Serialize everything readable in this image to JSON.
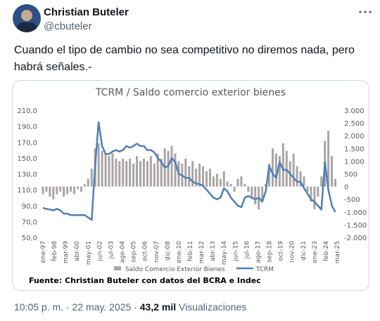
{
  "header": {
    "name": "Christian Buteler",
    "handle": "@cbuteler"
  },
  "tweet": {
    "lines": [
      "Cuando el tipo de cambio no sea competitivo no diremos nada, pero",
      "habrá señales.-"
    ]
  },
  "footer": {
    "time": "10:05 p. m.",
    "date": "22 may. 2025",
    "views": "43,2 mil",
    "views_label": "Visualizaciones"
  },
  "chart_data": {
    "type": "combo",
    "title": "TCRM / Saldo comercio exterior bienes",
    "source": "Fuente: Christian Buteler con datos del BCRA e Indec",
    "xlim": [
      0,
      338
    ],
    "xticks": [
      {
        "value": 0,
        "label": "ene-97"
      },
      {
        "value": 13,
        "label": "feb-98"
      },
      {
        "value": 26,
        "label": "mar-99"
      },
      {
        "value": 39,
        "label": "abr-00"
      },
      {
        "value": 52,
        "label": "may-01"
      },
      {
        "value": 65,
        "label": "jun-02"
      },
      {
        "value": 78,
        "label": "jul-03"
      },
      {
        "value": 91,
        "label": "ago-04"
      },
      {
        "value": 104,
        "label": "sep-05"
      },
      {
        "value": 117,
        "label": "oct-06"
      },
      {
        "value": 130,
        "label": "nov-07"
      },
      {
        "value": 143,
        "label": "dic-08"
      },
      {
        "value": 156,
        "label": "ene-10"
      },
      {
        "value": 169,
        "label": "feb-11"
      },
      {
        "value": 182,
        "label": "mar-12"
      },
      {
        "value": 195,
        "label": "abr-13"
      },
      {
        "value": 208,
        "label": "may-14"
      },
      {
        "value": 221,
        "label": "jun-15"
      },
      {
        "value": 234,
        "label": "jul-16"
      },
      {
        "value": 247,
        "label": "ago-17"
      },
      {
        "value": 260,
        "label": "sep-18"
      },
      {
        "value": 273,
        "label": "oct-19"
      },
      {
        "value": 286,
        "label": "nov-20"
      },
      {
        "value": 299,
        "label": "dic-21"
      },
      {
        "value": 312,
        "label": "ene-23"
      },
      {
        "value": 325,
        "label": "feb-24"
      },
      {
        "value": 338,
        "label": "mar-25"
      }
    ],
    "ylim": [
      50,
      210
    ],
    "yticks": [
      {
        "value": 50,
        "label": "50,0"
      },
      {
        "value": 70,
        "label": "70,0"
      },
      {
        "value": 90,
        "label": "90,0"
      },
      {
        "value": 110,
        "label": "110,0"
      },
      {
        "value": 130,
        "label": "130,0"
      },
      {
        "value": 150,
        "label": "150,0"
      },
      {
        "value": 170,
        "label": "170,0"
      },
      {
        "value": 190,
        "label": "190,0"
      },
      {
        "value": 210,
        "label": "210,0"
      }
    ],
    "y2lim": [
      -2000,
      3000
    ],
    "y2ticks": [
      {
        "value": -2000,
        "label": "-2.000"
      },
      {
        "value": -1500,
        "label": "-1.500"
      },
      {
        "value": -1000,
        "label": "-1.000"
      },
      -500,
      0,
      500,
      {
        "value": 1000,
        "label": "1.000"
      },
      {
        "value": 1500,
        "label": "1.500"
      },
      {
        "value": 2000,
        "label": "2.000"
      },
      {
        "value": 2500,
        "label": "2.500"
      },
      {
        "value": 3000,
        "label": "3.000"
      }
    ],
    "x": [
      0,
      4,
      8,
      12,
      16,
      20,
      24,
      28,
      32,
      36,
      40,
      44,
      48,
      52,
      56,
      60,
      64,
      68,
      72,
      76,
      80,
      84,
      88,
      92,
      96,
      100,
      104,
      108,
      112,
      116,
      120,
      124,
      128,
      132,
      136,
      140,
      144,
      148,
      152,
      156,
      160,
      164,
      168,
      172,
      176,
      180,
      184,
      188,
      192,
      196,
      200,
      204,
      208,
      212,
      216,
      220,
      224,
      228,
      232,
      236,
      240,
      244,
      248,
      252,
      256,
      260,
      264,
      268,
      272,
      276,
      280,
      284,
      288,
      292,
      296,
      300,
      304,
      308,
      312,
      316,
      320,
      324,
      328,
      332,
      336
    ],
    "series": [
      {
        "name": "Saldo Comercio Exterior Bienes",
        "type": "bar",
        "axis": "y2",
        "color": "#aaa4a4",
        "values": [
          -300,
          -200,
          -400,
          -500,
          -300,
          -200,
          -400,
          -300,
          -200,
          -300,
          -100,
          -200,
          100,
          300,
          700,
          1500,
          1700,
          1400,
          1300,
          1200,
          1300,
          1100,
          1000,
          1100,
          1000,
          1100,
          900,
          1200,
          1000,
          1100,
          1000,
          1200,
          900,
          1300,
          1100,
          1500,
          1400,
          1600,
          1300,
          1000,
          900,
          1100,
          800,
          1000,
          700,
          900,
          800,
          600,
          700,
          400,
          500,
          300,
          600,
          200,
          100,
          -200,
          300,
          400,
          100,
          -200,
          -500,
          -700,
          -900,
          -600,
          100,
          900,
          1500,
          1300,
          1200,
          1700,
          1400,
          1000,
          1300,
          800,
          600,
          400,
          -200,
          -600,
          -900,
          -400,
          400,
          1800,
          2200,
          1200,
          300
        ]
      },
      {
        "name": "TCRM",
        "type": "line",
        "color": "#4f7fb8",
        "values": [
          87,
          86,
          85,
          84,
          86,
          84,
          80,
          80,
          78,
          78,
          78,
          78,
          78,
          75,
          72,
          140,
          195,
          165,
          155,
          155,
          158,
          160,
          158,
          160,
          165,
          163,
          165,
          168,
          165,
          165,
          160,
          160,
          157,
          150,
          145,
          138,
          140,
          150,
          145,
          130,
          128,
          125,
          125,
          120,
          118,
          117,
          115,
          110,
          105,
          100,
          98,
          100,
          112,
          108,
          100,
          95,
          90,
          88,
          100,
          102,
          100,
          98,
          100,
          95,
          108,
          140,
          130,
          125,
          145,
          135,
          135,
          130,
          125,
          120,
          120,
          112,
          105,
          98,
          95,
          90,
          85,
          145,
          110,
          90,
          82
        ]
      }
    ]
  }
}
